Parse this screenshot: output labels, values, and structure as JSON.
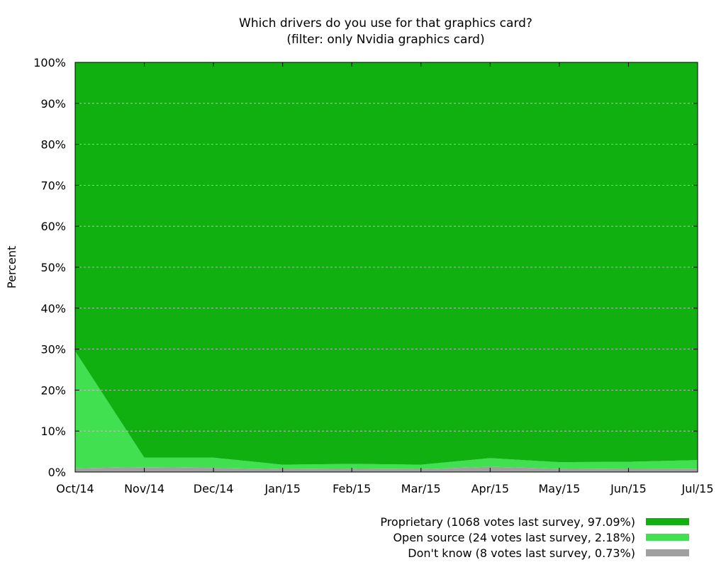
{
  "chart_data": {
    "type": "area",
    "stacked": true,
    "title": "Which drivers do you use for that graphics card?",
    "subtitle": "(filter: only Nvidia graphics card)",
    "xlabel": "",
    "ylabel": "Percent",
    "ylim": [
      0,
      100
    ],
    "y_ticks": [
      "0%",
      "10%",
      "20%",
      "30%",
      "40%",
      "50%",
      "60%",
      "70%",
      "80%",
      "90%",
      "100%"
    ],
    "grid": true,
    "legend_position": "bottom-right",
    "categories": [
      "Oct/14",
      "Nov/14",
      "Dec/14",
      "Jan/15",
      "Feb/15",
      "Mar/15",
      "Apr/15",
      "May/15",
      "Jun/15",
      "Jul/15"
    ],
    "series": [
      {
        "name": "Don't know (8 votes last survey, 0.73%)",
        "color": "#a0a0a0",
        "values": [
          0.9,
          1.2,
          1.0,
          0.7,
          0.8,
          0.7,
          1.3,
          0.8,
          0.7,
          0.73
        ]
      },
      {
        "name": "Open source (24 votes last survey, 2.18%)",
        "color": "#40e050",
        "values": [
          28.6,
          2.3,
          2.5,
          1.1,
          1.2,
          1.1,
          2.1,
          1.6,
          1.8,
          2.18
        ]
      },
      {
        "name": "Proprietary (1068 votes last survey, 97.09%)",
        "color": "#10b010",
        "values": [
          70.5,
          96.5,
          96.5,
          98.2,
          98.0,
          98.2,
          96.6,
          97.6,
          97.5,
          97.09
        ]
      }
    ]
  }
}
